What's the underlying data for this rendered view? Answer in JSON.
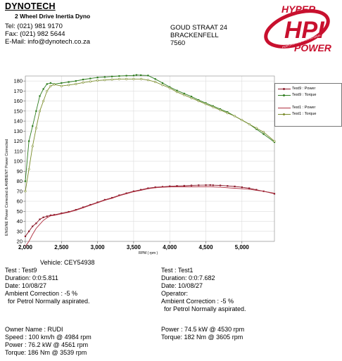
{
  "header": {
    "company": "DYNOTECH",
    "subtitle": "2 Wheel Drive Inertia Dyno",
    "tel": "Tel: (021) 981 9170",
    "fax": "Fax: (021) 982 5644",
    "email": "E-Mail: info@dynotech.co.za",
    "address_line1": "GOUD STRAAT 24",
    "address_line2": "BRACKENFELL",
    "address_line3": "7560"
  },
  "logo": {
    "top_text": "HYPER",
    "main_text": "HPI",
    "bottom_text": "POWER",
    "ring_text": "PERFORMANCE INTERNATIONAL",
    "color": "#c8102e"
  },
  "vehicle": "Vehicle: CEY54938",
  "test9": {
    "test": "Test   : Test9",
    "duration": "Duration: 0:0:5.811",
    "date": "Date: 10/08/27",
    "ambient": "Ambient Correction : -5 %",
    "petrol": "for Petrol Normally aspirated."
  },
  "test1": {
    "test": "Test   : Test1",
    "duration": "Duration: 0:0:7.682",
    "date": "Date: 10/08/27",
    "operator": "Operator:",
    "ambient": "Ambient Correction : -5 %",
    "petrol": "for Petrol Normally aspirated."
  },
  "owner": {
    "name": "Owner Name : RUDI",
    "speed": "Speed : 100 km/h @ 4984 rpm",
    "power": "Power : 76.2 kW @ 4561 rpm",
    "torque": "Torque: 186 Nm @ 3539 rpm"
  },
  "summary1": {
    "power": "Power : 74.5 kW @ 4530 rpm",
    "torque": "Torque: 182 Nm @ 3605 rpm"
  },
  "chart_data": {
    "type": "line",
    "xlabel": "RPM ( rpm )",
    "ylabel": "ENGINE Power Corrected & AMBIENT Power Corrected",
    "xlim": [
      2000,
      5450
    ],
    "ylim": [
      20,
      185
    ],
    "x_ticks": [
      "2,000",
      "2,500",
      "3,000",
      "3,500",
      "4,000",
      "4,500",
      "5,000"
    ],
    "x_tick_values": [
      2000,
      2500,
      3000,
      3500,
      4000,
      4500,
      5000
    ],
    "y_ticks": [
      20,
      30,
      40,
      50,
      60,
      70,
      80,
      90,
      100,
      110,
      120,
      130,
      140,
      150,
      160,
      170,
      180
    ],
    "grid": true,
    "legend_position": "right",
    "series": [
      {
        "name": "Test9 : Power",
        "color": "#8b1a2b",
        "marker": "square",
        "x": [
          2000,
          2050,
          2100,
          2150,
          2200,
          2250,
          2300,
          2350,
          2400,
          2500,
          2600,
          2700,
          2800,
          2900,
          3000,
          3100,
          3200,
          3300,
          3400,
          3500,
          3600,
          3700,
          3800,
          3900,
          4000,
          4100,
          4200,
          4300,
          4400,
          4500,
          4561,
          4600,
          4700,
          4800,
          4900,
          5000,
          5100,
          5200,
          5300,
          5450
        ],
        "y": [
          25,
          30,
          35,
          38,
          42,
          44,
          45,
          46,
          46.5,
          48,
          49.5,
          51.5,
          54,
          56.5,
          59,
          61.5,
          63.5,
          66,
          68,
          70,
          71.5,
          73,
          74,
          74.5,
          75,
          75.3,
          75.5,
          75.8,
          76,
          76.1,
          76.2,
          76,
          75.8,
          75.3,
          74.8,
          74,
          73,
          71.5,
          70,
          67.5
        ]
      },
      {
        "name": "Test9 : Torque",
        "color": "#2e7d1f",
        "marker": "square",
        "x": [
          2000,
          2050,
          2100,
          2150,
          2200,
          2250,
          2300,
          2350,
          2400,
          2500,
          2600,
          2700,
          2800,
          2900,
          3000,
          3100,
          3200,
          3300,
          3400,
          3500,
          3539,
          3600,
          3700,
          3800,
          3900,
          4000,
          4100,
          4200,
          4300,
          4400,
          4500,
          4600,
          4700,
          4800,
          4900,
          5000,
          5100,
          5200,
          5300,
          5450
        ],
        "y": [
          80,
          120,
          135,
          150,
          165,
          172,
          177,
          178,
          177,
          178,
          179,
          180,
          181.5,
          182.5,
          183.5,
          184,
          184.5,
          185,
          185.3,
          185.5,
          186,
          185.8,
          185.5,
          182,
          178,
          174,
          170.5,
          167.5,
          164.5,
          161,
          158,
          155,
          152,
          149,
          145,
          141,
          137,
          132,
          127,
          119
        ]
      },
      {
        "name": "Test1 : Power",
        "color": "#b03040",
        "marker": "none",
        "x": [
          2000,
          2050,
          2100,
          2150,
          2200,
          2250,
          2300,
          2350,
          2400,
          2500,
          2600,
          2700,
          2800,
          2900,
          3000,
          3100,
          3200,
          3300,
          3400,
          3500,
          3600,
          3700,
          3800,
          3900,
          4000,
          4100,
          4200,
          4300,
          4400,
          4500,
          4530,
          4600,
          4700,
          4800,
          4900,
          5000,
          5100,
          5200,
          5300,
          5450
        ],
        "y": [
          15,
          20,
          27,
          33,
          37,
          41,
          43.5,
          45.5,
          46,
          47.5,
          49,
          51,
          53.5,
          56,
          58.5,
          61,
          63,
          65.5,
          67.5,
          69.5,
          71,
          72.5,
          73.5,
          74,
          74.3,
          74.4,
          74.4,
          74.4,
          74.5,
          74.5,
          74.5,
          74.3,
          74,
          73.5,
          73,
          72.5,
          72,
          71,
          70,
          68
        ]
      },
      {
        "name": "Test1 : Torque",
        "color": "#7a8c2a",
        "marker": "circle",
        "x": [
          2000,
          2050,
          2100,
          2150,
          2200,
          2250,
          2300,
          2350,
          2400,
          2500,
          2600,
          2700,
          2800,
          2900,
          3000,
          3100,
          3200,
          3300,
          3400,
          3500,
          3605,
          3700,
          3800,
          3900,
          4000,
          4100,
          4200,
          4300,
          4400,
          4500,
          4600,
          4700,
          4800,
          4900,
          5000,
          5100,
          5200,
          5300,
          5450
        ],
        "y": [
          70,
          92,
          115,
          133,
          150,
          160,
          170,
          175,
          176.5,
          175,
          176,
          177,
          178.5,
          179.5,
          180.5,
          181,
          181.5,
          182,
          182,
          182,
          182,
          181,
          179,
          176,
          173,
          169,
          166,
          163,
          160,
          157,
          154,
          151,
          148,
          145,
          141,
          137,
          133,
          129,
          120
        ]
      }
    ]
  }
}
